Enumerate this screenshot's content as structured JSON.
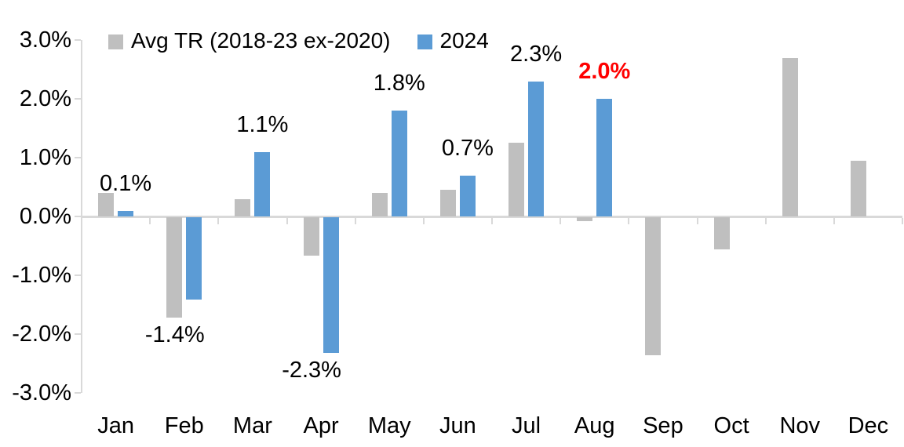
{
  "colors": {
    "series_avg": "#BFBFBF",
    "series_2024": "#5B9BD5",
    "axis": "#D9D9D9",
    "label_default": "#000000",
    "label_highlight": "#FF0000",
    "background": "#FFFFFF"
  },
  "legend": [
    {
      "label": "Avg TR (2018-23 ex-2020)",
      "color": "#BFBFBF",
      "icon": "legend-swatch-gray"
    },
    {
      "label": "2024",
      "color": "#5B9BD5",
      "icon": "legend-swatch-blue"
    }
  ],
  "chart_data": {
    "type": "bar",
    "title": "",
    "xlabel": "",
    "ylabel": "",
    "categories": [
      "Jan",
      "Feb",
      "Mar",
      "Apr",
      "May",
      "Jun",
      "Jul",
      "Aug",
      "Sep",
      "Oct",
      "Nov",
      "Dec"
    ],
    "series": [
      {
        "name": "Avg TR (2018-23 ex-2020)",
        "color": "#BFBFBF",
        "values": [
          0.4,
          -1.7,
          0.3,
          -0.65,
          0.4,
          0.45,
          1.25,
          -0.07,
          -2.35,
          -0.55,
          2.7,
          0.95
        ]
      },
      {
        "name": "2024",
        "color": "#5B9BD5",
        "values": [
          0.1,
          -1.4,
          1.1,
          -2.3,
          1.8,
          0.7,
          2.3,
          2.0,
          null,
          null,
          null,
          null
        ],
        "data_labels": [
          {
            "text": "0.1%",
            "color": "#000000",
            "bold": false
          },
          {
            "text": "-1.4%",
            "color": "#000000",
            "bold": false
          },
          {
            "text": "1.1%",
            "color": "#000000",
            "bold": false
          },
          {
            "text": "-2.3%",
            "color": "#000000",
            "bold": false
          },
          {
            "text": "1.8%",
            "color": "#000000",
            "bold": false
          },
          {
            "text": "0.7%",
            "color": "#000000",
            "bold": false
          },
          {
            "text": "2.3%",
            "color": "#000000",
            "bold": false
          },
          {
            "text": "2.0%",
            "color": "#FF0000",
            "bold": true
          },
          null,
          null,
          null,
          null
        ]
      }
    ],
    "ylim": [
      -3.0,
      3.0
    ],
    "y_ticks": [
      "3.0%",
      "2.0%",
      "1.0%",
      "0.0%",
      "-1.0%",
      "-2.0%",
      "-3.0%"
    ],
    "y_tick_values": [
      3.0,
      2.0,
      1.0,
      0.0,
      -1.0,
      -2.0,
      -3.0
    ],
    "grid": false,
    "legend_position": "top"
  }
}
